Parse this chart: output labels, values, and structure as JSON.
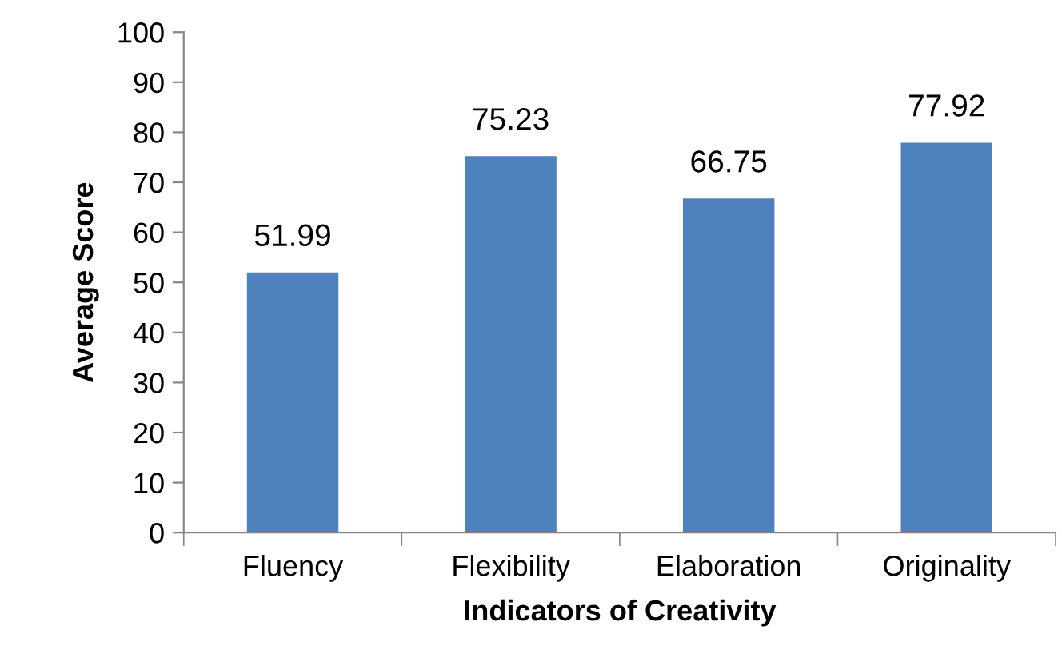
{
  "chart_data": {
    "type": "bar",
    "xlabel": "Indicators of Creativity",
    "ylabel": "Average Score",
    "categories": [
      "Fluency",
      "Flexibility",
      "Elaboration",
      "Originality"
    ],
    "values": [
      51.99,
      75.23,
      66.75,
      77.92
    ],
    "color": "#4f81bd",
    "ylim": [
      0,
      100
    ],
    "yticks": [
      0,
      10,
      20,
      30,
      40,
      50,
      60,
      70,
      80,
      90,
      100
    ],
    "grid": false,
    "data_labels": true
  }
}
